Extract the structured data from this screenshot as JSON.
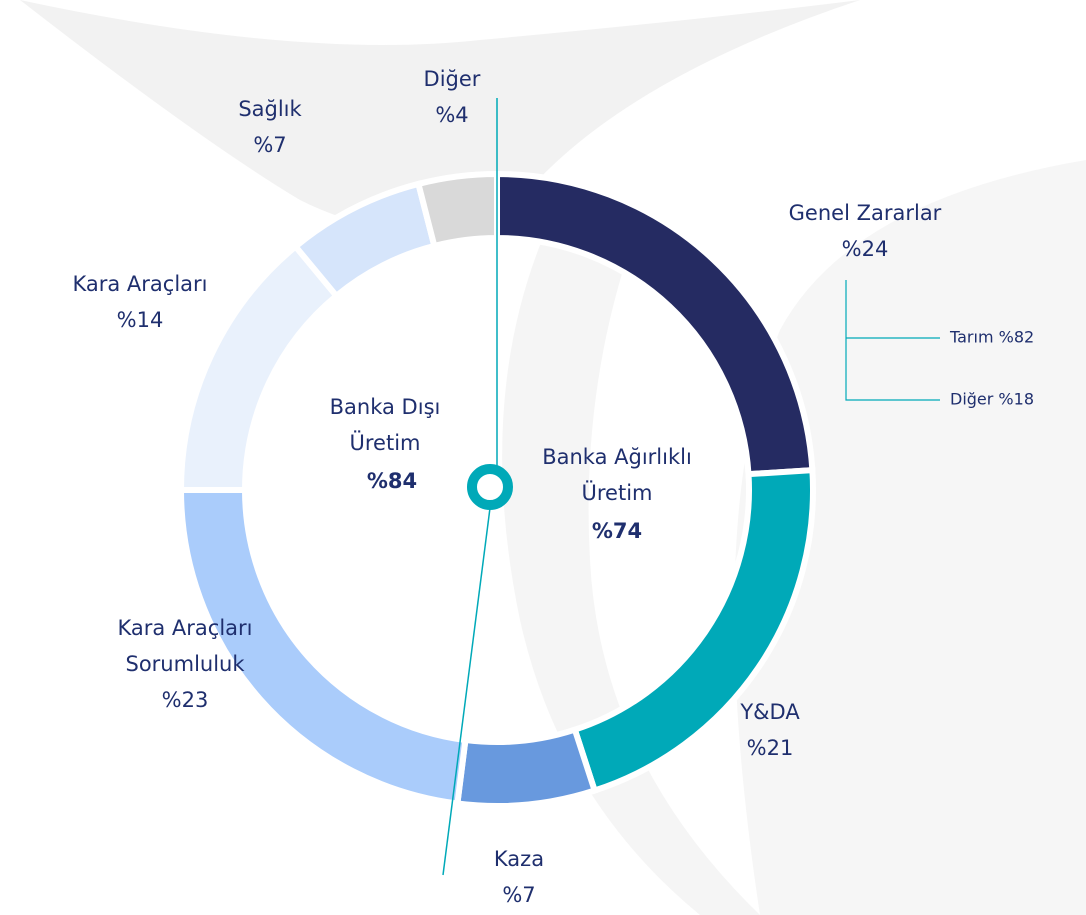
{
  "chart_data": {
    "type": "donut",
    "categories": [
      "Genel Zararlar",
      "Y&DA",
      "Kaza",
      "Kara Araçları Sorumluluk",
      "Kara Araçları",
      "Sağlık",
      "Diğer"
    ],
    "values": [
      24,
      21,
      7,
      23,
      14,
      7,
      4
    ],
    "value_labels": [
      "%24",
      "%21",
      "%7",
      "%23",
      "%14",
      "%7",
      "%4"
    ],
    "colors": [
      "#252b62",
      "#00a9b8",
      "#6899de",
      "#aaccfb",
      "#e9f1fc",
      "#d6e5fb",
      "#d9d9d9"
    ],
    "center_left": {
      "label": "Banka Dışı Üretim",
      "value_label": "%84"
    },
    "center_right": {
      "label": "Banka Ağırlıklı Üretim",
      "value_label": "%74"
    },
    "breakdown": [
      "Tarım %82",
      "Diğer %18"
    ]
  }
}
